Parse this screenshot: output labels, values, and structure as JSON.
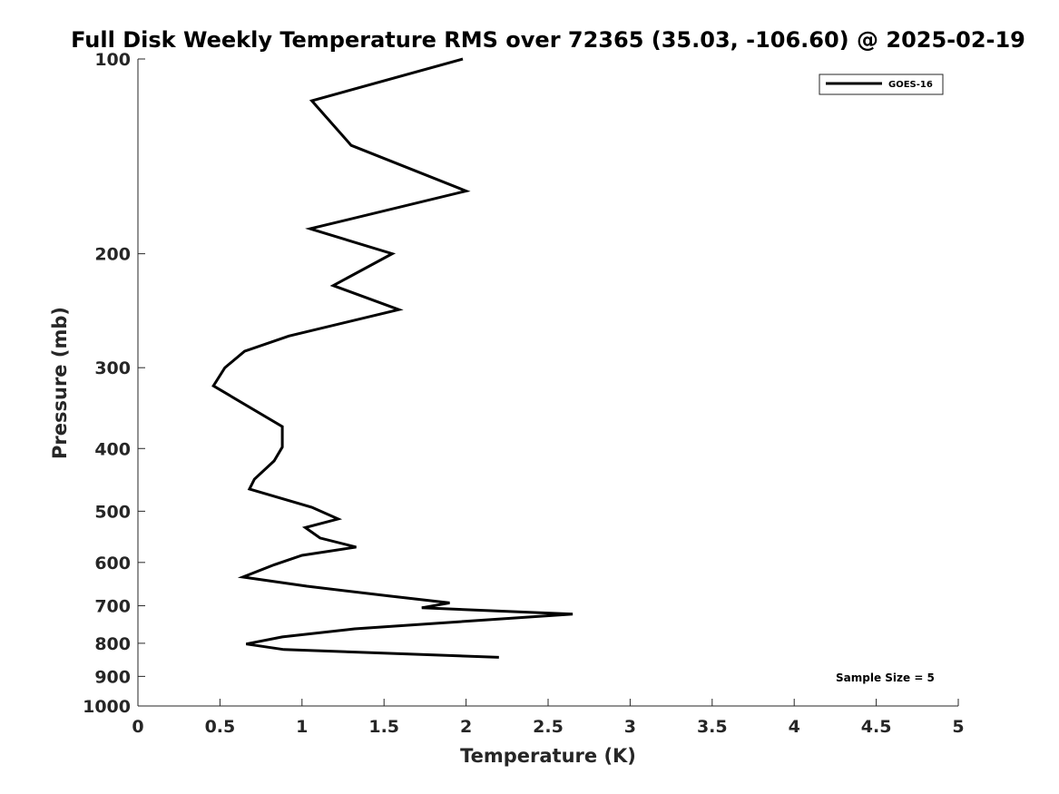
{
  "chart_data": {
    "type": "line",
    "title": "Full Disk Weekly Temperature RMS over 72365 (35.03, -106.60) @ 2025-02-19",
    "xlabel": "Temperature (K)",
    "ylabel": "Pressure (mb)",
    "xlim": [
      0,
      5
    ],
    "ylim": [
      1000,
      100
    ],
    "y_scale": "log",
    "y_reversed": true,
    "x_ticks": [
      0,
      0.5,
      1,
      1.5,
      2,
      2.5,
      3,
      3.5,
      4,
      4.5,
      5
    ],
    "x_tick_labels": [
      "0",
      "0.5",
      "1",
      "1.5",
      "2",
      "2.5",
      "3",
      "3.5",
      "4",
      "4.5",
      "5"
    ],
    "y_ticks": [
      100,
      200,
      300,
      400,
      500,
      600,
      700,
      800,
      900,
      1000
    ],
    "y_tick_labels": [
      "100",
      "200",
      "300",
      "400",
      "500",
      "600",
      "700",
      "800",
      "900",
      "1000"
    ],
    "grid": false,
    "legend_position": "top-right",
    "annotation": "Sample Size = 5",
    "series": [
      {
        "name": "GOES-16",
        "color": "#000000",
        "x": [
          1.98,
          1.06,
          1.3,
          2.0,
          1.05,
          1.55,
          1.19,
          1.59,
          0.92,
          0.65,
          0.53,
          0.46,
          0.88,
          0.88,
          0.83,
          0.71,
          0.68,
          1.06,
          1.22,
          1.02,
          1.11,
          1.33,
          1.0,
          0.83,
          0.64,
          1.03,
          1.53,
          1.9,
          1.73,
          2.65,
          1.32,
          0.88,
          0.66,
          0.89,
          2.2
        ],
        "y": [
          100,
          116,
          136,
          160,
          183,
          200,
          224,
          244,
          268,
          283,
          300,
          320,
          370,
          398,
          418,
          446,
          462,
          493,
          514,
          530,
          550,
          568,
          585,
          605,
          632,
          653,
          676,
          693,
          705,
          721,
          760,
          782,
          802,
          818,
          841
        ]
      }
    ]
  }
}
